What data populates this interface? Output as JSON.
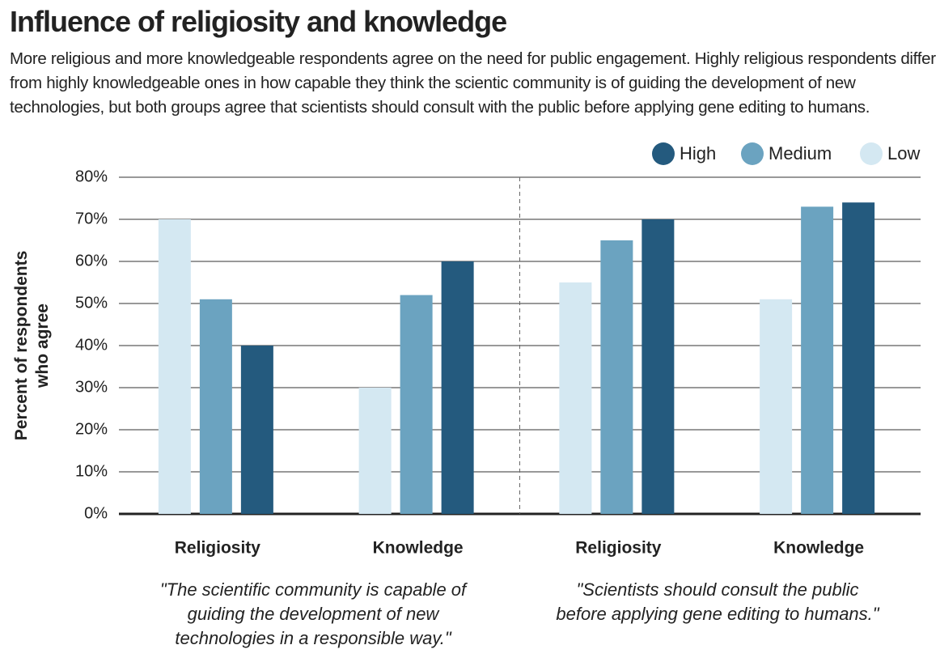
{
  "chart_data": {
    "type": "bar",
    "title": "Influence of religiosity and knowledge",
    "subtitle": "More religious and more knowledgeable respondents agree on the need for public engagement. Highly religious respondents differ from highly knowledgeable ones in how capable they think the scientic community is of guiding the development of new technologies, but both groups agree that scientists should consult with the public before applying gene editing to humans.",
    "ylabel": "Percent of respondents who agree",
    "categories": [
      "Religiosity",
      "Knowledge",
      "Religiosity",
      "Knowledge"
    ],
    "group_labels": [
      "\"The scientific community is capable of guiding the development of new technologies in a responsible way.\"",
      "\"Scientists should consult the public before applying gene editing to humans.\""
    ],
    "series": [
      {
        "name": "High",
        "color": "#245a7e",
        "values": [
          40,
          60,
          70,
          74
        ]
      },
      {
        "name": "Medium",
        "color": "#6ba3c0",
        "values": [
          51,
          52,
          65,
          73
        ]
      },
      {
        "name": "Low",
        "color": "#d4e8f2",
        "values": [
          70,
          30,
          55,
          51
        ]
      }
    ],
    "ylim": [
      0,
      80
    ],
    "yticks": [
      {
        "value": 0,
        "label": "0%"
      },
      {
        "value": 10,
        "label": "10%"
      },
      {
        "value": 20,
        "label": "20%"
      },
      {
        "value": 30,
        "label": "30%"
      },
      {
        "value": 40,
        "label": "40%"
      },
      {
        "value": 50,
        "label": "50%"
      },
      {
        "value": 60,
        "label": "60%"
      },
      {
        "value": 70,
        "label": "70%"
      },
      {
        "value": 80,
        "label": "80%"
      }
    ],
    "grid": true,
    "legend": "top-right"
  }
}
